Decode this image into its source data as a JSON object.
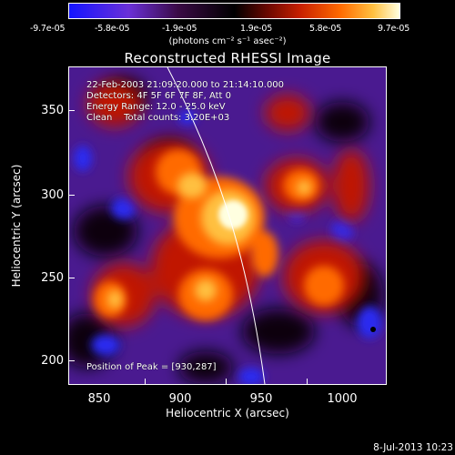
{
  "colorbar": {
    "ticks": [
      "-9.7e-05",
      "-5.8e-05",
      "-1.9e-05",
      "1.9e-05",
      "5.8e-05",
      "9.7e-05"
    ],
    "units_label": "(photons cm⁻² s⁻¹ asec⁻²)"
  },
  "title": "Reconstructed RHESSI Image",
  "info": {
    "time_range": "22-Feb-2003 21:09:20.000 to 21:14:10.000",
    "detectors": "Detectors: 4F 5F 6F 7F 8F, Att 0",
    "energy_range": "Energy Range: 12.0 - 25.0 keV",
    "clean": "Clean    Total counts: 3.20E+03",
    "peak": "Position of Peak = [930,287]"
  },
  "axes": {
    "xlabel": "Heliocentric X (arcsec)",
    "ylabel": "Heliocentric Y (arcsec)",
    "xticks": [
      "850",
      "900",
      "950",
      "1000"
    ],
    "yticks": [
      "350",
      "300",
      "250",
      "200"
    ],
    "xlim": [
      833,
      1027
    ],
    "ylim": [
      188,
      382
    ]
  },
  "timestamp": "8-Jul-2013 10:23",
  "colors": {
    "background": "#000000",
    "hot_peak": "#ffffe0",
    "negative": "#1414ff"
  }
}
